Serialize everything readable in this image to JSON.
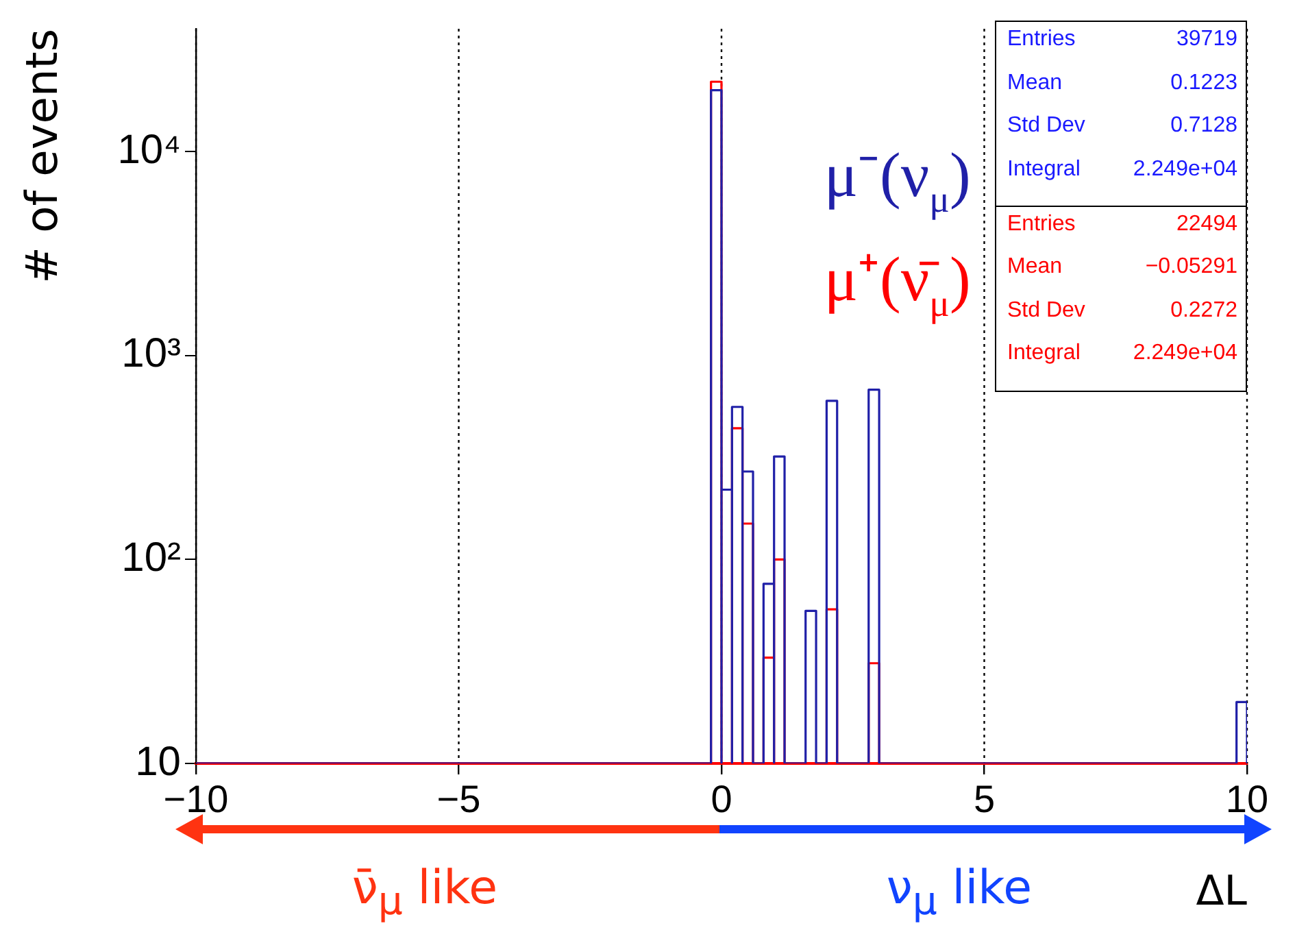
{
  "chart_data": {
    "type": "histogram",
    "ylabel": "# of events",
    "xlabel": "ΔL",
    "bins": [
      -10,
      -0.2,
      0,
      0.2,
      0.4,
      0.6,
      0.8,
      1.0,
      1.2,
      1.6,
      1.8,
      2.0,
      2.2,
      2.8,
      3.0,
      9.8,
      10
    ],
    "series": [
      {
        "name": "μ⁻(ν$_{μ}$)",
        "color": "#2020a8",
        "values": [
          null,
          20000,
          220,
          560,
          270,
          null,
          76,
          320,
          null,
          56,
          null,
          600,
          null,
          680,
          null,
          20
        ]
      },
      {
        "name": "μ⁺(ν̄$_{μ}$)",
        "color": "#ff0000",
        "values": [
          null,
          22000,
          220,
          440,
          150,
          null,
          33,
          100,
          null,
          null,
          null,
          57,
          null,
          31,
          null,
          null
        ]
      }
    ],
    "xlim": [
      -10,
      10
    ],
    "xticks": [
      {
        "value": -10,
        "label": "−10"
      },
      {
        "value": -5,
        "label": "−5"
      },
      0,
      5,
      10
    ],
    "ylim": [
      10,
      40000
    ],
    "yticks": [
      10,
      {
        "value": 100,
        "label": "10²"
      },
      {
        "value": 1000,
        "label": "10³"
      },
      {
        "value": 10000,
        "label": "10⁴"
      }
    ],
    "log": "y",
    "grid": "x",
    "annotations": [
      "Entries 39719",
      "Mean 0.1223",
      "Std Dev 0.7128",
      "Integral 2.249e+04",
      "Entries 22494",
      "Mean −0.05291",
      "Std Dev 0.2272",
      "Integral 2.249e+04",
      "ν̄$_{μ}$ like",
      "ν$_{μ}$ like"
    ]
  }
}
